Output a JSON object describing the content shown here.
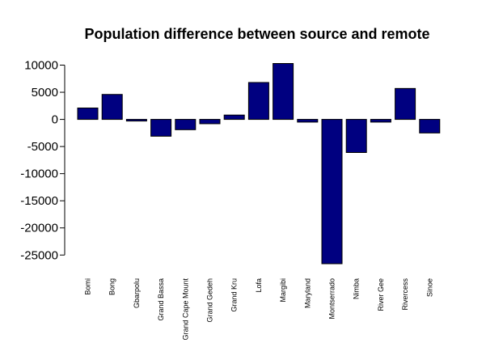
{
  "chart_data": {
    "type": "bar",
    "title": "Population difference between source and remote",
    "xlabel": "",
    "ylabel": "",
    "categories": [
      "Bomi",
      "Bong",
      "Gbarpolu",
      "Grand Bassa",
      "Grand Cape Mount",
      "Grand Gedeh",
      "Grand Kru",
      "Lofa",
      "Margibi",
      "Maryland",
      "Montserrado",
      "Nimba",
      "River Gee",
      "Rivercess",
      "Sinoe"
    ],
    "values": [
      2100,
      4600,
      -300,
      -3100,
      -1900,
      -800,
      800,
      6800,
      10300,
      -500,
      -26600,
      -6100,
      -500,
      5700,
      -2500
    ],
    "ylim": [
      -26600,
      10300
    ],
    "yticks": [
      10000,
      5000,
      0,
      -5000,
      -10000,
      -15000,
      -20000,
      -25000
    ],
    "ytick_labels": [
      "10000",
      "5000",
      "0",
      "-5000",
      "-10000",
      "-15000",
      "-20000",
      "-25000"
    ],
    "grid": false,
    "colors": {
      "bar_fill": "#000080",
      "bar_stroke": "#000000"
    }
  }
}
